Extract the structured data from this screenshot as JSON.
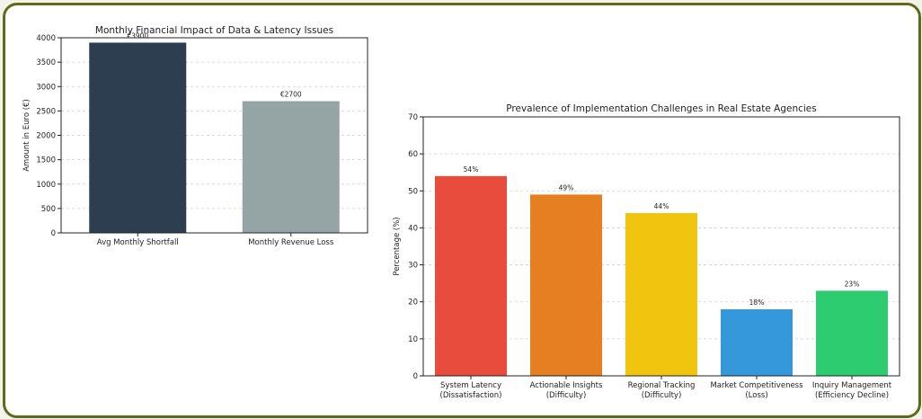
{
  "chart_data": [
    {
      "type": "bar",
      "title": "Monthly Financial Impact of Data & Latency Issues",
      "xlabel": "",
      "ylabel": "Amount in Euro (€)",
      "categories": [
        "Avg Monthly Shortfall",
        "Monthly Revenue Loss"
      ],
      "values": [
        3900,
        2700
      ],
      "data_labels": [
        "€3900",
        "€2700"
      ],
      "colors": [
        "#2c3e50",
        "#95a5a6"
      ],
      "ylim": [
        0,
        4000
      ],
      "yticks": [
        "0",
        "500",
        "1000",
        "1500",
        "2000",
        "2500",
        "3000",
        "3500",
        "4000"
      ],
      "grid": true
    },
    {
      "type": "bar",
      "title": "Prevalence of Implementation Challenges in Real Estate Agencies",
      "xlabel": "",
      "ylabel": "Percentage (%)",
      "categories": [
        [
          "System Latency",
          "(Dissatisfaction)"
        ],
        [
          "Actionable Insights",
          "(Difficulty)"
        ],
        [
          "Regional Tracking",
          "(Difficulty)"
        ],
        [
          "Market Competitiveness",
          "(Loss)"
        ],
        [
          "Inquiry Management",
          "(Efficiency Decline)"
        ]
      ],
      "values": [
        54,
        49,
        44,
        18,
        23
      ],
      "data_labels": [
        "54%",
        "49%",
        "44%",
        "18%",
        "23%"
      ],
      "colors": [
        "#e74c3c",
        "#e67e22",
        "#f1c40f",
        "#3498db",
        "#2ecc71"
      ],
      "ylim": [
        0,
        70
      ],
      "yticks": [
        "0",
        "10",
        "20",
        "30",
        "40",
        "50",
        "60",
        "70"
      ],
      "grid": true
    }
  ]
}
